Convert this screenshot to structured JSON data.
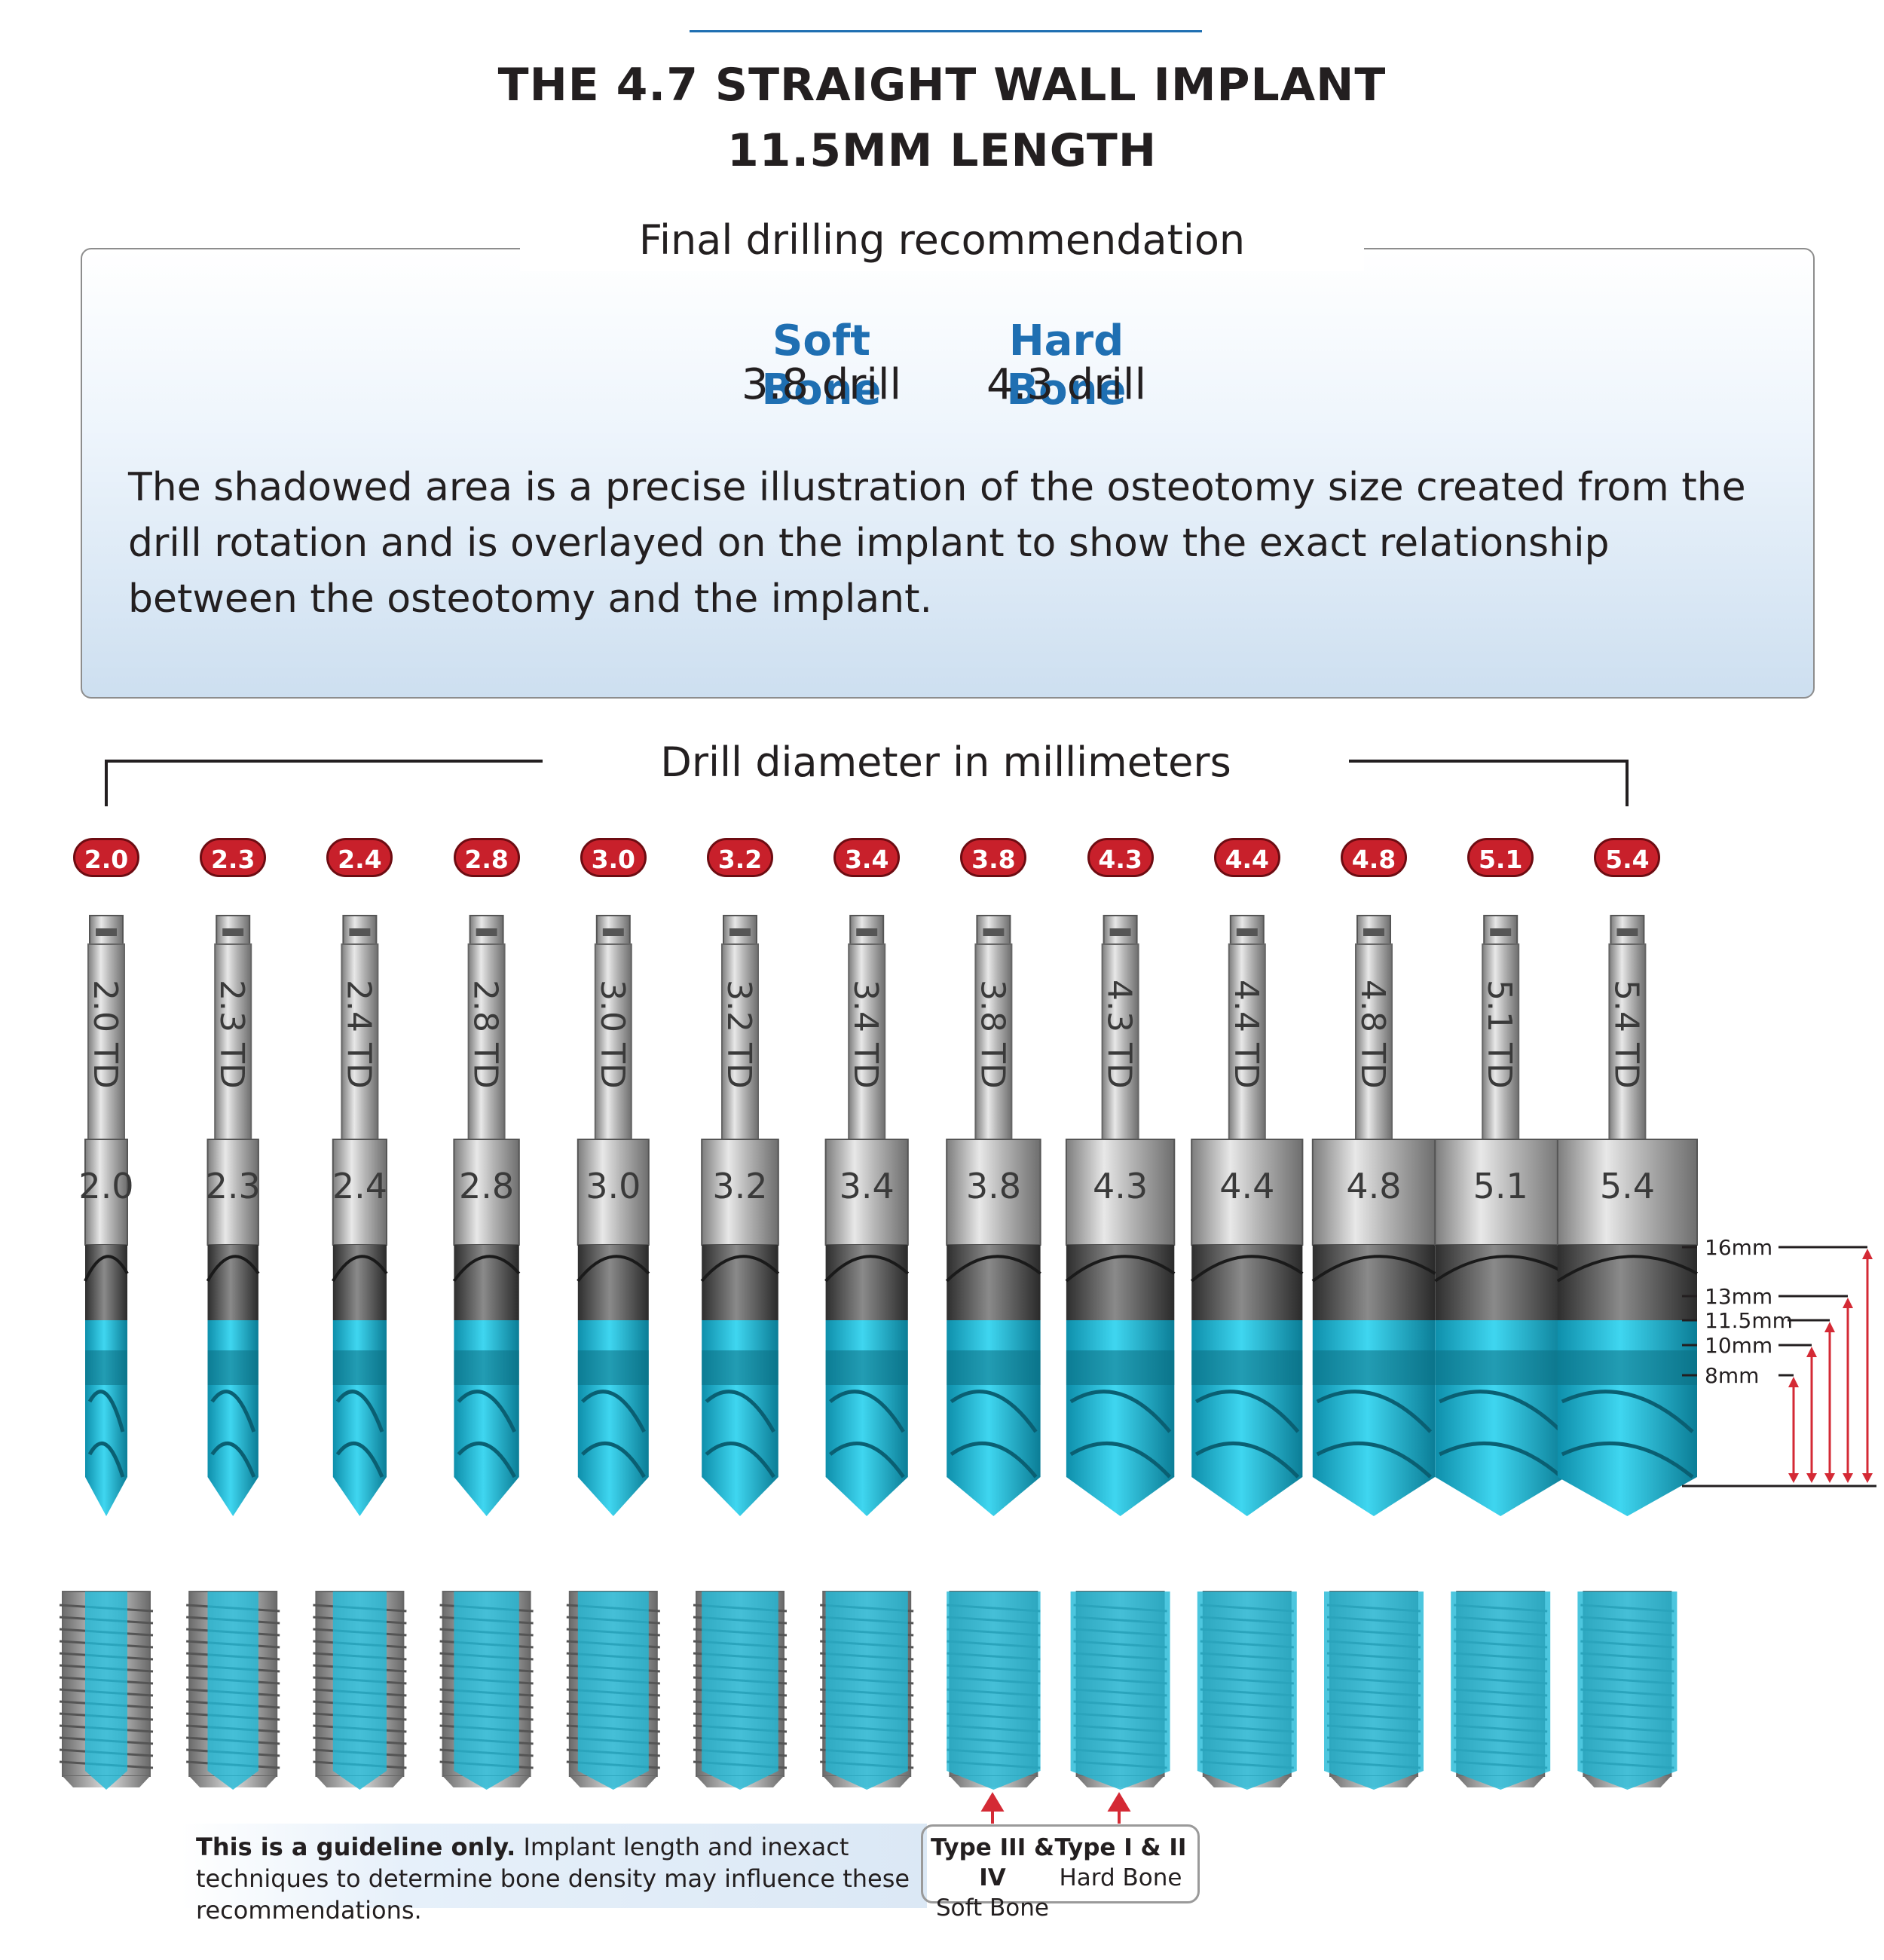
{
  "header": {
    "title_line1": "THE 4.7 STRAIGHT WALL IMPLANT",
    "title_line2": "11.5MM LENGTH"
  },
  "recommendation": {
    "heading": "Final drilling recommendation",
    "soft": {
      "label": "Soft Bone",
      "value": "3.8 drill"
    },
    "hard": {
      "label": "Hard Bone",
      "value": "4.3 drill"
    },
    "description": "The shadowed area is a precise illustration of the osteotomy size created from the drill rotation and is overlayed on the implant to show the exact relationship between the osteotomy and the implant."
  },
  "drills": {
    "heading": "Drill diameter in millimeters",
    "sizes": [
      "2.0",
      "2.3",
      "2.4",
      "2.8",
      "3.0",
      "3.2",
      "3.4",
      "3.8",
      "4.3",
      "4.4",
      "4.8",
      "5.1",
      "5.4"
    ],
    "shaft_labels": [
      "2.0 TD",
      "2.3 TD",
      "2.4 TD",
      "2.8 TD",
      "3.0 TD",
      "3.2 TD",
      "3.4 TD",
      "3.8 TD",
      "4.3 TD",
      "4.4 TD",
      "4.8 TD",
      "5.1 TD",
      "5.4 TD"
    ]
  },
  "depth_marks": [
    "16mm",
    "13mm",
    "11.5mm",
    "10mm",
    "8mm"
  ],
  "footer": {
    "guideline_bold": "This is a guideline only.",
    "guideline_rest": " Implant length and inexact techniques to determine bone density may influence these recommendations.",
    "soft_type": "Type III & IV",
    "soft_label": "Soft Bone",
    "hard_type": "Type I & II",
    "hard_label": "Hard Bone"
  },
  "colors": {
    "accent_blue": "#1f6fb2",
    "badge_red": "#c8202b",
    "osteotomy_teal": "#1fb8d6",
    "arrow_red": "#d42a35"
  }
}
